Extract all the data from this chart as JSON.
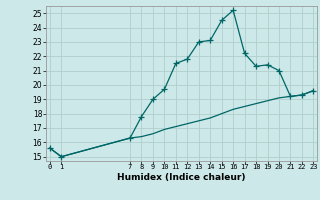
{
  "title": "",
  "xlabel": "Humidex (Indice chaleur)",
  "bg_color": "#cce8e8",
  "grid_color": "#b0d0cc",
  "line_color": "#006666",
  "xlim": [
    -0.3,
    23.3
  ],
  "ylim": [
    14.7,
    25.5
  ],
  "yticks": [
    15,
    16,
    17,
    18,
    19,
    20,
    21,
    22,
    23,
    24,
    25
  ],
  "xticks": [
    0,
    1,
    7,
    8,
    9,
    10,
    11,
    12,
    13,
    14,
    15,
    16,
    17,
    18,
    19,
    20,
    21,
    22,
    23
  ],
  "line1_x": [
    0,
    1,
    7,
    8,
    9,
    10,
    11,
    12,
    13,
    14,
    15,
    16,
    17,
    18,
    19,
    20,
    21,
    22,
    23
  ],
  "line1_y": [
    15.6,
    15.0,
    16.3,
    17.8,
    19.0,
    19.7,
    21.5,
    21.8,
    23.0,
    23.1,
    24.5,
    25.2,
    22.2,
    21.3,
    21.4,
    21.0,
    19.2,
    19.3,
    19.6
  ],
  "line2_x": [
    0,
    1,
    7,
    8,
    9,
    10,
    11,
    12,
    13,
    14,
    15,
    16,
    17,
    18,
    19,
    20,
    21,
    22,
    23
  ],
  "line2_y": [
    15.6,
    15.0,
    16.3,
    16.4,
    16.6,
    16.9,
    17.1,
    17.3,
    17.5,
    17.7,
    18.0,
    18.3,
    18.5,
    18.7,
    18.9,
    19.1,
    19.2,
    19.3,
    19.6
  ]
}
